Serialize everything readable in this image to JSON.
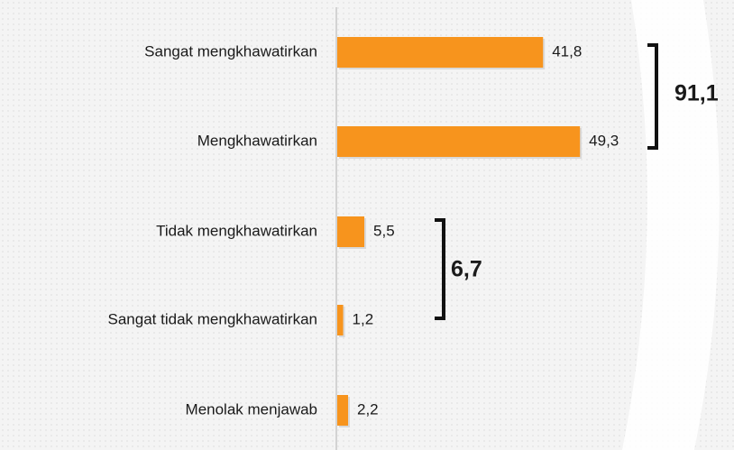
{
  "chart_data": {
    "type": "bar",
    "orientation": "horizontal",
    "categories": [
      "Sangat mengkhawatirkan",
      "Mengkhawatirkan",
      "Tidak mengkhawatirkan",
      "Sangat tidak mengkhawatirkan",
      "Menolak menjawab"
    ],
    "values": [
      41.8,
      49.3,
      5.5,
      1.2,
      2.2
    ],
    "value_labels": [
      "41,8",
      "49,3",
      "5,5",
      "1,2",
      "2,2"
    ],
    "color": "#f7941d",
    "annotations": [
      {
        "value": 91.1,
        "label": "91,1"
      },
      {
        "value": 6.7,
        "label": "6,7"
      }
    ]
  }
}
